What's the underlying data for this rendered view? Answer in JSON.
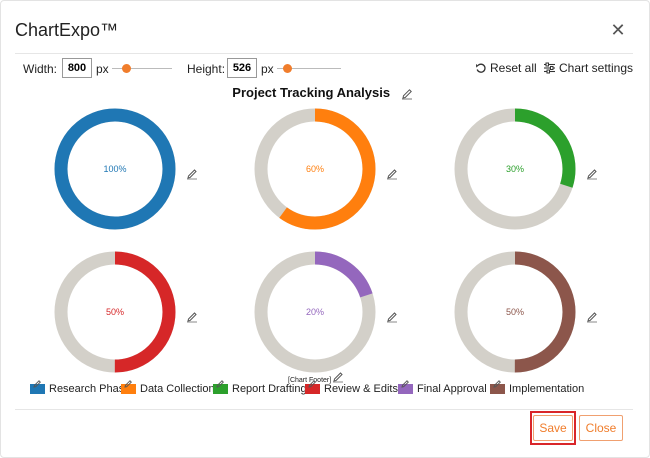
{
  "app": {
    "title": "ChartExpo™"
  },
  "toolbar": {
    "width_label": "Width:",
    "width_value": "800",
    "height_label": "Height:",
    "height_value": "526",
    "unit": "px",
    "reset_label": "Reset all",
    "settings_label": "Chart settings"
  },
  "chart_data": {
    "type": "donut",
    "title": "Project Tracking Analysis",
    "footer": "[Chart Footer]",
    "track_color": "#d3d0c9",
    "series": [
      {
        "name": "Research Phase",
        "value": 100,
        "label": "100%",
        "color": "#1f77b4"
      },
      {
        "name": "Data Collection",
        "value": 60,
        "label": "60%",
        "color": "#ff7f0e"
      },
      {
        "name": "Report Drafting",
        "value": 30,
        "label": "30%",
        "color": "#2ca02c"
      },
      {
        "name": "Review & Edits",
        "value": 50,
        "label": "50%",
        "color": "#d62728"
      },
      {
        "name": "Final Approval",
        "value": 20,
        "label": "20%",
        "color": "#9467bd"
      },
      {
        "name": "Implementation",
        "value": 50,
        "label": "50%",
        "color": "#8c564b"
      }
    ]
  },
  "buttons": {
    "save": "Save",
    "close": "Close"
  },
  "icons": {
    "close": "close-icon",
    "reset": "reset-icon",
    "settings": "settings-icon",
    "edit": "pencil-icon"
  },
  "colors": {
    "accent": "#f07d2c",
    "highlight": "#d9262a"
  }
}
